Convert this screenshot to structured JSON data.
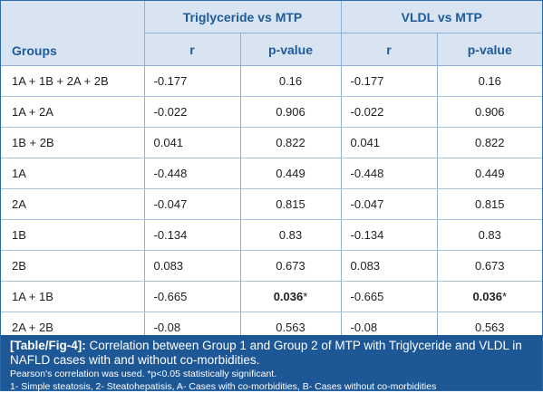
{
  "header": {
    "groups_label": "Groups",
    "col_group_1": "Triglyceride vs MTP",
    "col_group_2": "VLDL vs MTP",
    "r_label": "r",
    "p_label": "p-value"
  },
  "rows": [
    {
      "group": "1A + 1B + 2A + 2B",
      "tg_r": "-0.177",
      "tg_p": "0.16",
      "vldl_r": "-0.177",
      "vldl_p": "0.16"
    },
    {
      "group": "1A + 2A",
      "tg_r": "-0.022",
      "tg_p": "0.906",
      "vldl_r": "-0.022",
      "vldl_p": "0.906"
    },
    {
      "group": "1B + 2B",
      "tg_r": "0.041",
      "tg_p": "0.822",
      "vldl_r": "0.041",
      "vldl_p": "0.822"
    },
    {
      "group": "1A",
      "tg_r": "-0.448",
      "tg_p": "0.449",
      "vldl_r": "-0.448",
      "vldl_p": "0.449"
    },
    {
      "group": "2A",
      "tg_r": "-0.047",
      "tg_p": "0.815",
      "vldl_r": "-0.047",
      "vldl_p": "0.815"
    },
    {
      "group": "1B",
      "tg_r": "-0.134",
      "tg_p": "0.83",
      "vldl_r": "-0.134",
      "vldl_p": "0.83"
    },
    {
      "group": "2B",
      "tg_r": "0.083",
      "tg_p": "0.673",
      "vldl_r": "0.083",
      "vldl_p": "0.673"
    },
    {
      "group": "1A + 1B",
      "tg_r": "-0.665",
      "tg_p": "0.036",
      "tg_p_suffix": "*",
      "vldl_r": "-0.665",
      "vldl_p": "0.036",
      "vldl_p_suffix": "*"
    },
    {
      "group": "2A + 2B",
      "tg_r": "-0.08",
      "tg_p": "0.563",
      "vldl_r": "-0.08",
      "vldl_p": "0.563"
    }
  ],
  "caption": {
    "tag": "[Table/Fig-4]:",
    "text": " Correlation between Group 1 and Group 2 of MTP with Triglyceride and VLDL in NAFLD cases with and without co-morbidities.",
    "note1": "Pearson's correlation was used. *p<0.05 statistically significant.",
    "note2": "1- Simple steatosis, 2- Steatohepatisis, A- Cases with co-morbidities, B- Cases without co-morbidities"
  },
  "colors": {
    "header_bg": "#d8e4f1",
    "header_text": "#1e5a9a",
    "caption_bg": "#1d5796",
    "border": "#8fb0d6"
  }
}
